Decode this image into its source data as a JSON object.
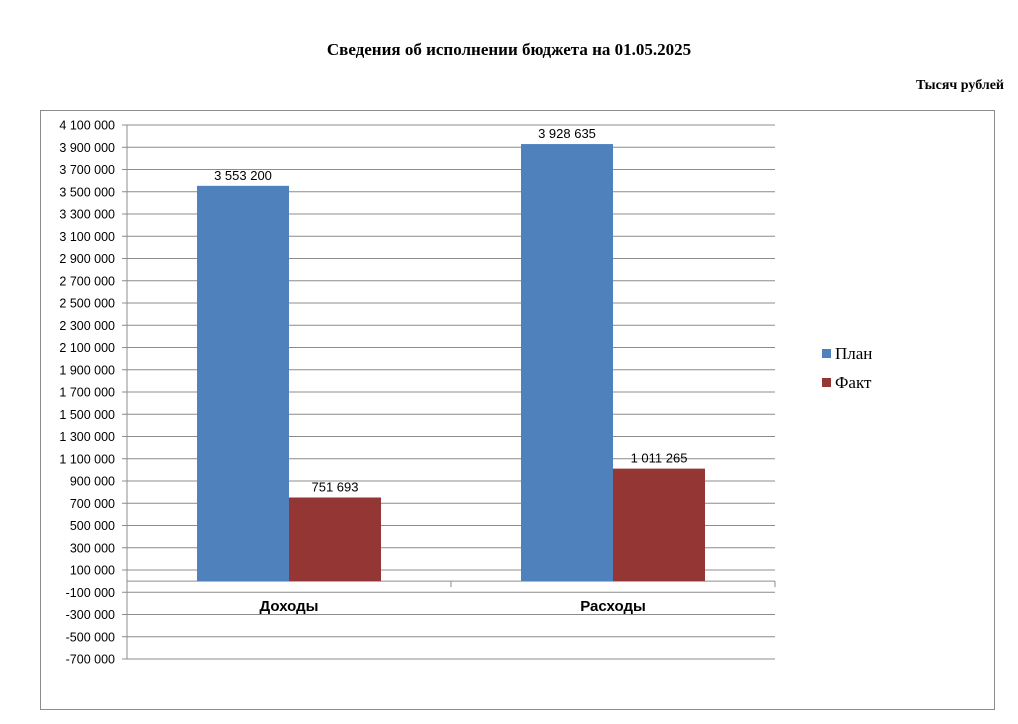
{
  "page": {
    "title": "Сведения об исполнении бюджета на 01.05.2025",
    "units": "Тысяч рублей"
  },
  "chart_data": {
    "type": "bar",
    "title": "",
    "xlabel": "",
    "ylabel": "",
    "categories": [
      "Доходы",
      "Расходы"
    ],
    "series": [
      {
        "name": "План",
        "values": [
          3553200,
          3928635
        ],
        "labels": [
          "3 553 200",
          "3 928 635"
        ],
        "color": "#4f81bd"
      },
      {
        "name": "Факт",
        "values": [
          751693,
          1011265
        ],
        "labels": [
          "751 693",
          "1 011 265"
        ],
        "color": "#943634"
      }
    ],
    "y_ticks": [
      4100000,
      3900000,
      3700000,
      3500000,
      3300000,
      3100000,
      2900000,
      2700000,
      2500000,
      2300000,
      2100000,
      1900000,
      1700000,
      1500000,
      1300000,
      1100000,
      900000,
      700000,
      500000,
      300000,
      100000,
      -100000,
      -300000,
      -500000,
      -700000
    ],
    "y_tick_labels": [
      "4 100 000",
      "3 900 000",
      "3 700 000",
      "3 500 000",
      "3 300 000",
      "3 100 000",
      "2 900 000",
      "2 700 000",
      "2 500 000",
      "2 300 000",
      "2 100 000",
      "1 900 000",
      "1 700 000",
      "1 500 000",
      "1 300 000",
      "1 100 000",
      "900 000",
      "700 000",
      "500 000",
      "300 000",
      "100 000",
      "-100 000",
      "-300 000",
      "-500 000",
      "-700 000"
    ],
    "ylim": [
      -700000,
      4100000
    ],
    "grid": true,
    "legend_position": "right"
  }
}
